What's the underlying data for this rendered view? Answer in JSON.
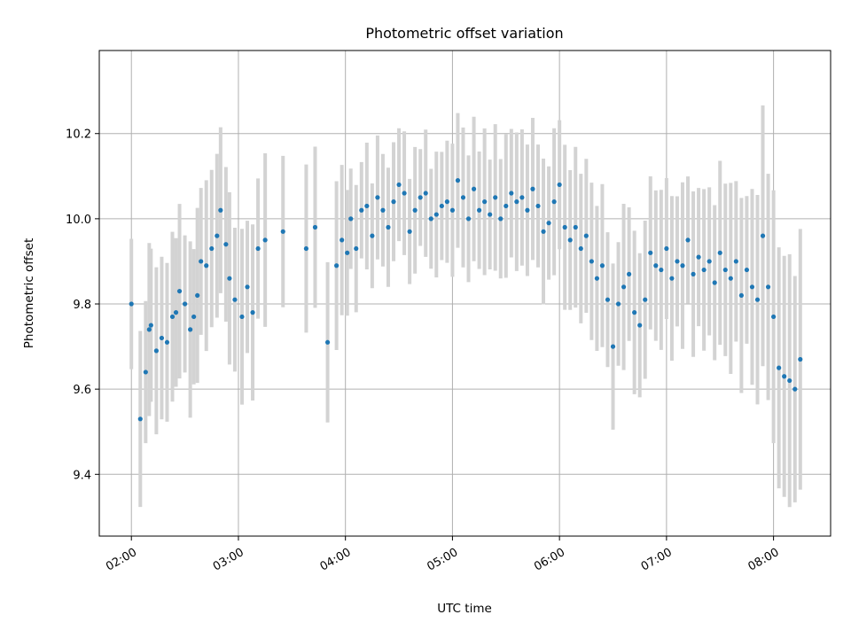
{
  "chart_data": {
    "type": "scatter",
    "title": "Photometric offset variation",
    "xlabel": "UTC time",
    "ylabel": "Photometric offset",
    "x_tick_labels": [
      "02:00",
      "03:00",
      "04:00",
      "05:00",
      "06:00",
      "07:00",
      "08:00"
    ],
    "y_tick_labels": [
      "9.4",
      "9.6",
      "9.8",
      "10.0",
      "10.2"
    ],
    "y_ticks": [
      9.4,
      9.6,
      9.8,
      10.0,
      10.2
    ],
    "xlim": [
      "01:42",
      "08:32"
    ],
    "ylim": [
      9.255,
      10.395
    ],
    "grid": true,
    "marker_color": "#1f77b4",
    "errorbar_color": "#d3d3d3",
    "series": [
      {
        "x": [
          "02:00",
          "02:05",
          "02:08",
          "02:10",
          "02:11",
          "02:14",
          "02:17",
          "02:20",
          "02:23",
          "02:25",
          "02:27",
          "02:30",
          "02:33",
          "02:35",
          "02:37",
          "02:39",
          "02:42",
          "02:45",
          "02:48",
          "02:50",
          "02:53",
          "02:55",
          "02:58",
          "03:02",
          "03:05",
          "03:08",
          "03:11",
          "03:15",
          "03:25",
          "03:38",
          "03:43",
          "03:50",
          "03:55",
          "03:58",
          "04:01",
          "04:03",
          "04:06",
          "04:09",
          "04:12",
          "04:15",
          "04:18",
          "04:21",
          "04:24",
          "04:27",
          "04:30",
          "04:33",
          "04:36",
          "04:39",
          "04:42",
          "04:45",
          "04:48",
          "04:51",
          "04:54",
          "04:57",
          "05:00",
          "05:03",
          "05:06",
          "05:09",
          "05:12",
          "05:15",
          "05:18",
          "05:21",
          "05:24",
          "05:27",
          "05:30",
          "05:33",
          "05:36",
          "05:39",
          "05:42",
          "05:45",
          "05:48",
          "05:51",
          "05:54",
          "05:57",
          "06:00",
          "06:03",
          "06:06",
          "06:09",
          "06:12",
          "06:15",
          "06:18",
          "06:21",
          "06:24",
          "06:27",
          "06:30",
          "06:33",
          "06:36",
          "06:39",
          "06:42",
          "06:45",
          "06:48",
          "06:51",
          "06:54",
          "06:57",
          "07:00",
          "07:03",
          "07:06",
          "07:09",
          "07:12",
          "07:15",
          "07:18",
          "07:21",
          "07:24",
          "07:27",
          "07:30",
          "07:33",
          "07:36",
          "07:39",
          "07:42",
          "07:45",
          "07:48",
          "07:51",
          "07:54",
          "07:57",
          "08:00",
          "08:03",
          "08:06",
          "08:09",
          "08:12",
          "08:15"
        ],
        "y": [
          9.8,
          9.53,
          9.64,
          9.74,
          9.75,
          9.69,
          9.72,
          9.71,
          9.77,
          9.78,
          9.83,
          9.8,
          9.74,
          9.77,
          9.82,
          9.9,
          9.89,
          9.93,
          9.96,
          10.02,
          9.94,
          9.86,
          9.81,
          9.77,
          9.84,
          9.78,
          9.93,
          9.95,
          9.97,
          9.93,
          9.98,
          9.71,
          9.89,
          9.95,
          9.92,
          10.0,
          9.93,
          10.02,
          10.03,
          9.96,
          10.05,
          10.02,
          9.98,
          10.04,
          10.08,
          10.06,
          9.97,
          10.02,
          10.05,
          10.06,
          10.0,
          10.01,
          10.03,
          10.04,
          10.02,
          10.09,
          10.05,
          10.0,
          10.07,
          10.02,
          10.04,
          10.01,
          10.05,
          10.0,
          10.03,
          10.06,
          10.04,
          10.05,
          10.02,
          10.07,
          10.03,
          9.97,
          9.99,
          10.04,
          10.08,
          9.98,
          9.95,
          9.98,
          9.93,
          9.96,
          9.9,
          9.86,
          9.89,
          9.81,
          9.7,
          9.8,
          9.84,
          9.87,
          9.78,
          9.75,
          9.81,
          9.92,
          9.89,
          9.88,
          9.93,
          9.86,
          9.9,
          9.89,
          9.95,
          9.87,
          9.91,
          9.88,
          9.9,
          9.85,
          9.92,
          9.88,
          9.86,
          9.9,
          9.82,
          9.88,
          9.84,
          9.81,
          9.96,
          9.84,
          9.77,
          9.65,
          9.63,
          9.62,
          9.6,
          9.67
        ]
      }
    ]
  }
}
